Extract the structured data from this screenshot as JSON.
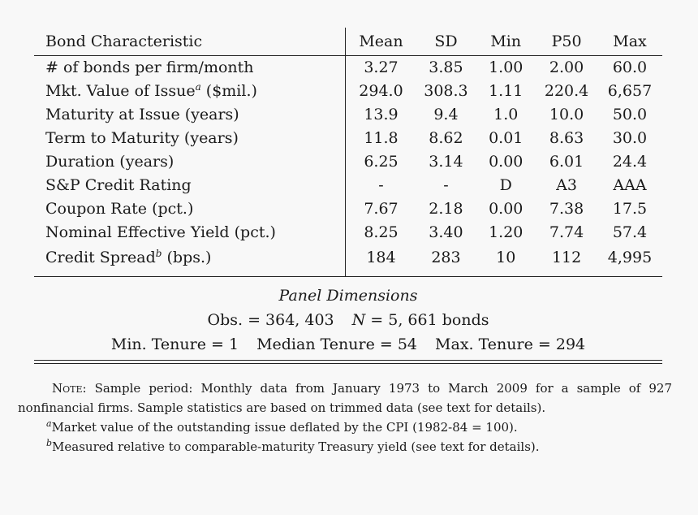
{
  "table": {
    "header": [
      "Bond Characteristic",
      "Mean",
      "SD",
      "Min",
      "P50",
      "Max"
    ],
    "rows": [
      {
        "label": "# of bonds per firm/month",
        "sup": "",
        "unit": "",
        "values": [
          "3.27",
          "3.85",
          "1.00",
          "2.00",
          "60.0"
        ]
      },
      {
        "label": "Mkt. Value of Issue",
        "sup": "a",
        "unit": " ($mil.)",
        "values": [
          "294.0",
          "308.3",
          "1.11",
          "220.4",
          "6,657"
        ]
      },
      {
        "label": "Maturity at Issue (years)",
        "sup": "",
        "unit": "",
        "values": [
          "13.9",
          "9.4",
          "1.0",
          "10.0",
          "50.0"
        ]
      },
      {
        "label": "Term to Maturity (years)",
        "sup": "",
        "unit": "",
        "values": [
          "11.8",
          "8.62",
          "0.01",
          "8.63",
          "30.0"
        ]
      },
      {
        "label": "Duration (years)",
        "sup": "",
        "unit": "",
        "values": [
          "6.25",
          "3.14",
          "0.00",
          "6.01",
          "24.4"
        ]
      },
      {
        "label": "S&P Credit Rating",
        "sup": "",
        "unit": "",
        "values": [
          "-",
          "-",
          "D",
          "A3",
          "AAA"
        ]
      },
      {
        "label": "Coupon Rate (pct.)",
        "sup": "",
        "unit": "",
        "values": [
          "7.67",
          "2.18",
          "0.00",
          "7.38",
          "17.5"
        ]
      },
      {
        "label": "Nominal Effective Yield (pct.)",
        "sup": "",
        "unit": "",
        "values": [
          "8.25",
          "3.40",
          "1.20",
          "7.74",
          "57.4"
        ]
      },
      {
        "label": "Credit Spread",
        "sup": "b",
        "unit": " (bps.)",
        "values": [
          "184",
          "283",
          "10",
          "112",
          "4,995"
        ]
      }
    ]
  },
  "panel": {
    "title": "Panel Dimensions",
    "obs": "Obs. = 364, 403",
    "n_label": "N",
    "n_value": " = 5, 661 bonds",
    "min_tenure": "Min. Tenure = 1",
    "median_tenure": "Median Tenure = 54",
    "max_tenure": "Max. Tenure = 294"
  },
  "notes": {
    "note_label": "Note:",
    "note_text": " Sample period: Monthly data from January 1973 to March 2009 for a sample of 927 nonfinancial firms. Sample statistics are based on trimmed data (see text for details).",
    "fn_a_mark": "a",
    "fn_a_text": "Market value of the outstanding issue deflated by the CPI (1982-84 = 100).",
    "fn_b_mark": "b",
    "fn_b_text": "Measured relative to comparable-maturity Treasury yield (see text for details)."
  }
}
